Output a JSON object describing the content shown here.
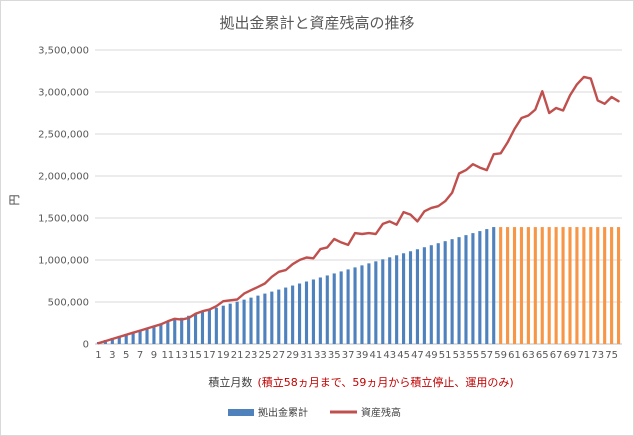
{
  "chart_data": {
    "type": "bar+line",
    "title": "拠出金累計と資産残高の推移",
    "ylabel": "円",
    "xlabel_main": "積立月数",
    "xlabel_note": "(積立58ヵ月まで、59ヵ月から積立停止、運用のみ)",
    "ylim": [
      0,
      3500000
    ],
    "yticks": [
      0,
      500000,
      1000000,
      1500000,
      2000000,
      2500000,
      3000000,
      3500000
    ],
    "ytick_labels": [
      "0",
      "500,000",
      "1,000,000",
      "1,500,000",
      "2,000,000",
      "2,500,000",
      "3,000,000",
      "3,500,000"
    ],
    "x": [
      1,
      2,
      3,
      4,
      5,
      6,
      7,
      8,
      9,
      10,
      11,
      12,
      13,
      14,
      15,
      16,
      17,
      18,
      19,
      20,
      21,
      22,
      23,
      24,
      25,
      26,
      27,
      28,
      29,
      30,
      31,
      32,
      33,
      34,
      35,
      36,
      37,
      38,
      39,
      40,
      41,
      42,
      43,
      44,
      45,
      46,
      47,
      48,
      49,
      50,
      51,
      52,
      53,
      54,
      55,
      56,
      57,
      58,
      59,
      60,
      61,
      62,
      63,
      64,
      65,
      66,
      67,
      68,
      69,
      70,
      71,
      72,
      73,
      74,
      75,
      76
    ],
    "xtick_labels": [
      "1",
      "3",
      "5",
      "7",
      "9",
      "11",
      "13",
      "15",
      "17",
      "19",
      "21",
      "23",
      "25",
      "27",
      "29",
      "31",
      "33",
      "35",
      "37",
      "39",
      "41",
      "43",
      "45",
      "47",
      "49",
      "51",
      "53",
      "55",
      "57",
      "59",
      "61",
      "63",
      "65",
      "67",
      "69",
      "71",
      "73",
      "75"
    ],
    "contribution_step": 24000,
    "contribution_stop_month": 58,
    "grid": true,
    "legend_position": "bottom",
    "series": [
      {
        "name": "拠出金累計",
        "kind": "bar",
        "color": "#4f81bd",
        "color_after_stop": "#f79646",
        "values": [
          24000,
          48000,
          72000,
          96000,
          120000,
          144000,
          168000,
          192000,
          216000,
          240000,
          264000,
          288000,
          312000,
          336000,
          360000,
          384000,
          408000,
          432000,
          456000,
          480000,
          504000,
          528000,
          552000,
          576000,
          600000,
          624000,
          648000,
          672000,
          696000,
          720000,
          744000,
          768000,
          792000,
          816000,
          840000,
          864000,
          888000,
          912000,
          936000,
          960000,
          984000,
          1008000,
          1032000,
          1056000,
          1080000,
          1104000,
          1128000,
          1152000,
          1176000,
          1200000,
          1224000,
          1248000,
          1272000,
          1296000,
          1320000,
          1344000,
          1368000,
          1392000,
          1392000,
          1392000,
          1392000,
          1392000,
          1392000,
          1392000,
          1392000,
          1392000,
          1392000,
          1392000,
          1392000,
          1392000,
          1392000,
          1392000,
          1392000,
          1392000,
          1392000,
          1392000
        ]
      },
      {
        "name": "資産残高",
        "kind": "line",
        "color": "#c0504d",
        "values": [
          10000,
          35000,
          60000,
          85000,
          110000,
          135000,
          160000,
          185000,
          210000,
          235000,
          270000,
          300000,
          290000,
          310000,
          360000,
          390000,
          410000,
          450000,
          510000,
          520000,
          530000,
          600000,
          640000,
          680000,
          720000,
          800000,
          860000,
          880000,
          950000,
          1000000,
          1030000,
          1020000,
          1130000,
          1150000,
          1250000,
          1210000,
          1180000,
          1320000,
          1310000,
          1320000,
          1310000,
          1430000,
          1460000,
          1420000,
          1570000,
          1540000,
          1460000,
          1580000,
          1620000,
          1640000,
          1700000,
          1800000,
          2030000,
          2070000,
          2140000,
          2100000,
          2070000,
          2260000,
          2270000,
          2400000,
          2560000,
          2690000,
          2720000,
          2790000,
          3010000,
          2750000,
          2810000,
          2780000,
          2960000,
          3090000,
          3180000,
          3160000,
          2900000,
          2860000,
          2940000,
          2890000
        ]
      }
    ]
  }
}
